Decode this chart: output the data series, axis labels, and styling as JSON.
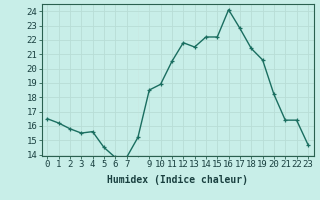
{
  "x": [
    0,
    1,
    2,
    3,
    4,
    5,
    6,
    7,
    8,
    9,
    10,
    11,
    12,
    13,
    14,
    15,
    16,
    17,
    18,
    19,
    20,
    21,
    22,
    23
  ],
  "y": [
    16.5,
    16.2,
    15.8,
    15.5,
    15.6,
    14.5,
    13.8,
    13.8,
    15.2,
    18.5,
    18.9,
    20.5,
    21.8,
    21.5,
    22.2,
    22.2,
    24.1,
    22.8,
    21.4,
    20.6,
    18.2,
    16.4,
    16.4,
    14.7
  ],
  "line_color": "#1a6e60",
  "marker": "+",
  "bg_color": "#c8eee8",
  "xlabel": "Humidex (Indice chaleur)",
  "xlim": [
    -0.5,
    23.5
  ],
  "ylim": [
    13.9,
    24.5
  ],
  "yticks": [
    14,
    15,
    16,
    17,
    18,
    19,
    20,
    21,
    22,
    23,
    24
  ],
  "xticks": [
    0,
    1,
    2,
    3,
    4,
    5,
    6,
    7,
    9,
    10,
    11,
    12,
    13,
    14,
    15,
    16,
    17,
    18,
    19,
    20,
    21,
    22,
    23
  ],
  "xtick_labels": [
    "0",
    "1",
    "2",
    "3",
    "4",
    "5",
    "6",
    "7",
    "9",
    "10",
    "11",
    "12",
    "13",
    "14",
    "15",
    "16",
    "17",
    "18",
    "19",
    "20",
    "21",
    "22",
    "23"
  ],
  "xlabel_fontsize": 7,
  "tick_fontsize": 6.5,
  "linewidth": 1.0,
  "markersize": 3.5,
  "grid_major_color": "#b8ddd6",
  "grid_minor_color": "#c8e8e2",
  "spine_color": "#2a6050"
}
